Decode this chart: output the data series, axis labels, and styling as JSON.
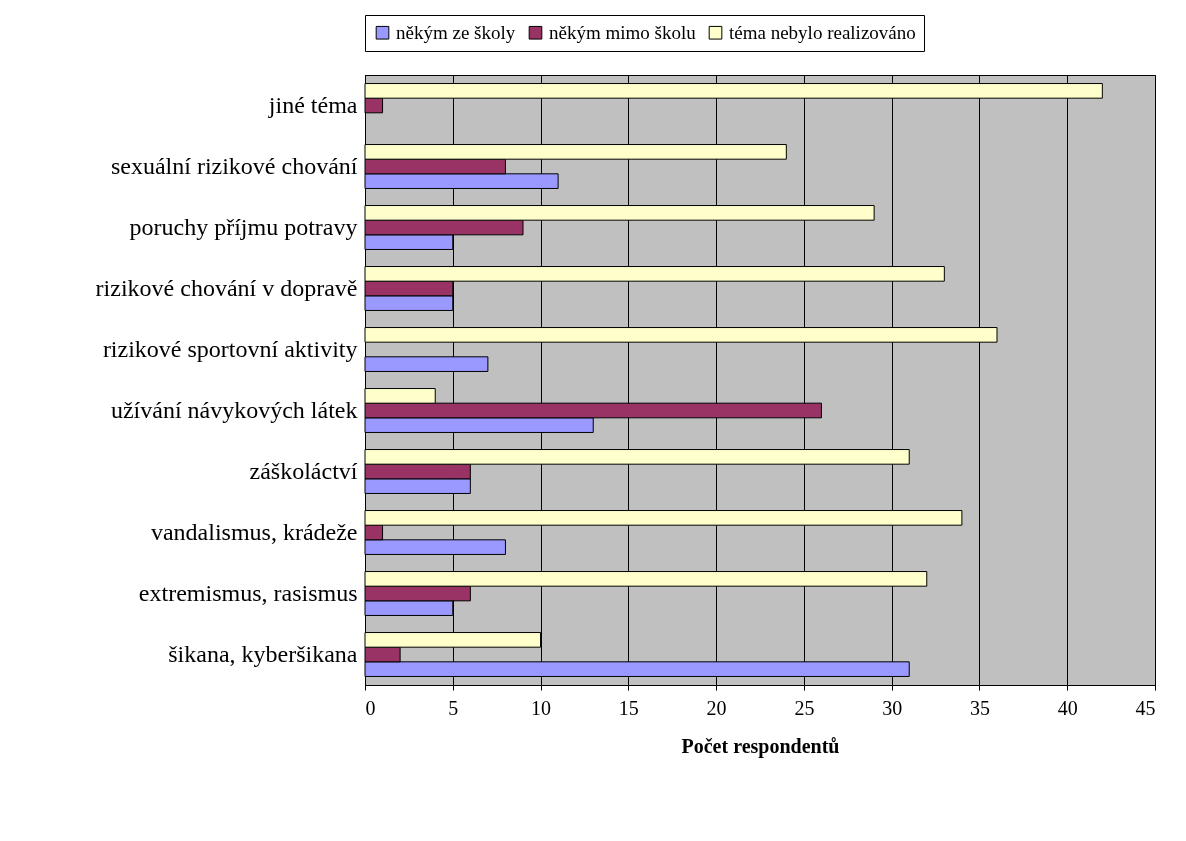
{
  "chart_data": {
    "type": "bar",
    "orientation": "horizontal",
    "xlabel": "Počet respondentů",
    "categories": [
      "jiné téma",
      "sexuální rizikové chování",
      "poruchy příjmu potravy",
      "rizikové chování v dopravě",
      "rizikové sportovní aktivity",
      "užívání návykových látek",
      "záškoláctví",
      "vandalismus, krádeže",
      "extremismus, rasismus",
      "šikana, kyberšikana"
    ],
    "series": [
      {
        "name": "někým ze školy",
        "color": "#9999ff",
        "values": [
          null,
          11,
          5,
          5,
          7,
          13,
          6,
          8,
          5,
          31
        ]
      },
      {
        "name": "někým mimo školu",
        "color": "#993366",
        "values": [
          1,
          8,
          9,
          5,
          null,
          26,
          6,
          1,
          6,
          2
        ]
      },
      {
        "name": "téma nebylo realizováno",
        "color": "#ffffcc",
        "values": [
          42,
          24,
          29,
          33,
          36,
          4,
          31,
          34,
          32,
          10
        ]
      }
    ],
    "xlim": [
      0,
      45
    ],
    "xticks": [
      0,
      5,
      10,
      15,
      20,
      25,
      30,
      35,
      40,
      45
    ],
    "grid": "x",
    "legend": "top"
  }
}
